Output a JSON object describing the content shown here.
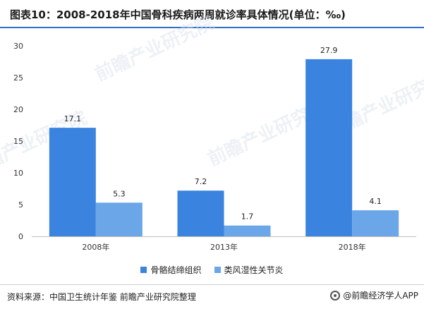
{
  "header": {
    "title": "图表10：2008-2018年中国骨科疾病两周就诊率具体情况(单位：‰)"
  },
  "footer": {
    "source": "资料来源：中国卫生统计年鉴 前瞻产业研究院整理",
    "brand": "@前瞻经济学人APP"
  },
  "watermark": {
    "text": "前瞻产业研究院"
  },
  "colors": {
    "series_1": "#3a84e0",
    "series_2": "#6aa6e8",
    "axis": "#bfbfbf",
    "accent_rule": "#2f6fc9"
  },
  "chart_data": {
    "type": "bar",
    "title": "图表10：2008-2018年中国骨科疾病两周就诊率具体情况(单位：‰)",
    "xlabel": "",
    "ylabel": "",
    "categories": [
      "2008年",
      "2013年",
      "2018年"
    ],
    "series": [
      {
        "name": "骨骼结缔组织",
        "values": [
          17.1,
          7.2,
          27.9
        ]
      },
      {
        "name": "类风湿性关节炎",
        "values": [
          5.3,
          1.7,
          4.1
        ]
      }
    ],
    "ylim": [
      0,
      30
    ],
    "yticks": [
      0,
      5,
      10,
      15,
      20,
      25,
      30
    ],
    "grid": false,
    "legend_position": "bottom-center"
  }
}
